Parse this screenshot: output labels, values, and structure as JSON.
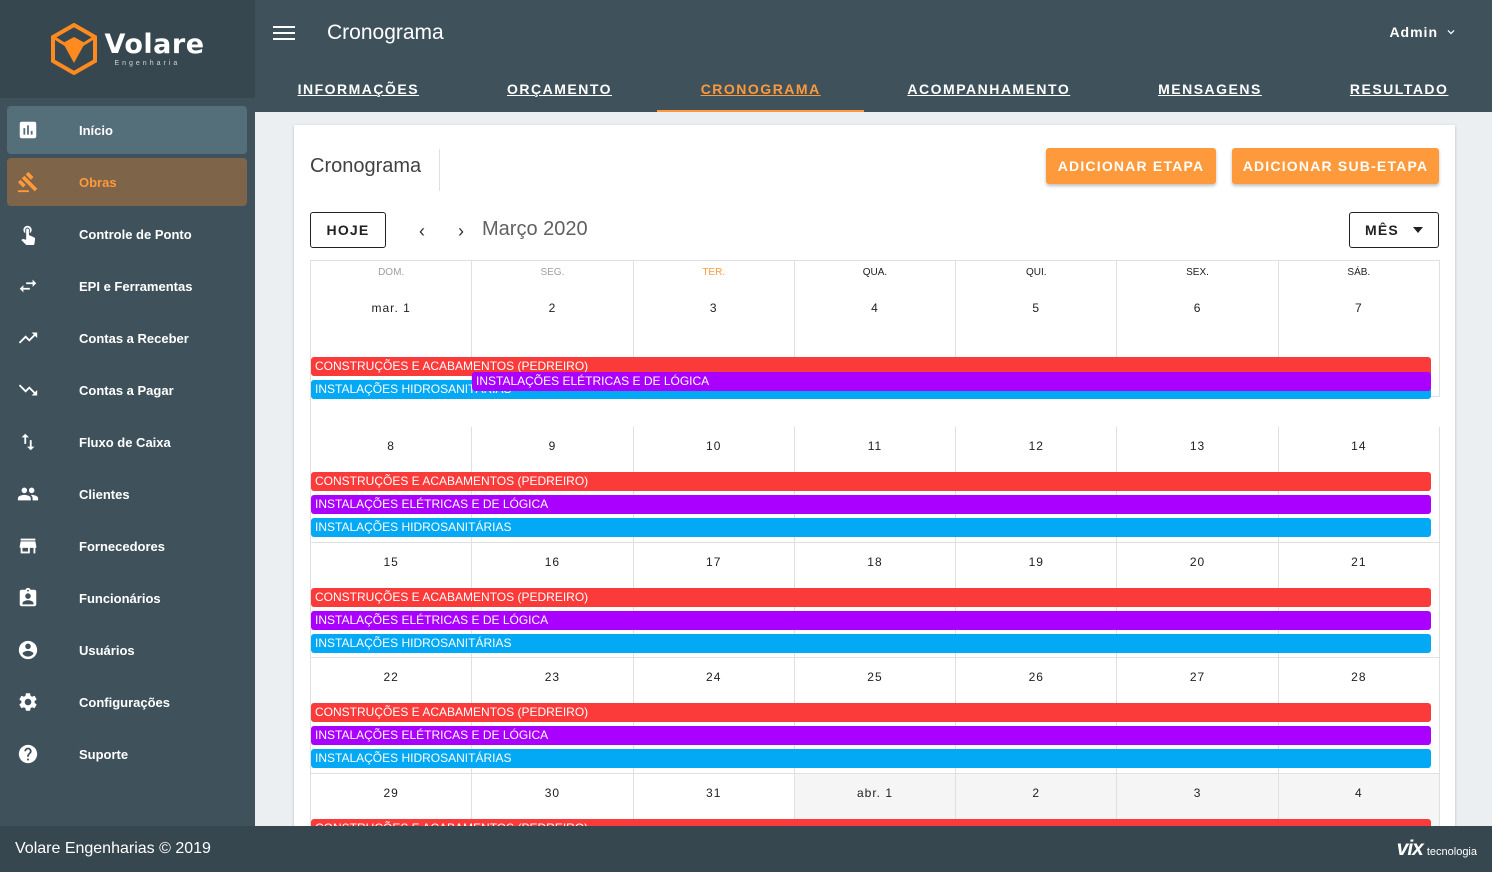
{
  "brand": {
    "name": "Volare",
    "sub": "Engenharia",
    "accent": "#ff9a3c"
  },
  "sidebar": {
    "items": [
      {
        "label": "Início",
        "icon": "chart-icon"
      },
      {
        "label": "Obras",
        "icon": "gavel-icon"
      },
      {
        "label": "Controle de Ponto",
        "icon": "touch-icon"
      },
      {
        "label": "EPI e Ferramentas",
        "icon": "swap-icon"
      },
      {
        "label": "Contas a Receber",
        "icon": "trending-up-icon"
      },
      {
        "label": "Contas a Pagar",
        "icon": "trending-down-icon"
      },
      {
        "label": "Fluxo de Caixa",
        "icon": "import-export-icon"
      },
      {
        "label": "Clientes",
        "icon": "people-icon"
      },
      {
        "label": "Fornecedores",
        "icon": "store-icon"
      },
      {
        "label": "Funcionários",
        "icon": "badge-icon"
      },
      {
        "label": "Usuários",
        "icon": "account-icon"
      },
      {
        "label": "Configurações",
        "icon": "gear-icon"
      },
      {
        "label": "Suporte",
        "icon": "help-icon"
      }
    ]
  },
  "header": {
    "title": "Cronograma",
    "user": "Admin",
    "tabs": [
      {
        "label": "INFORMAÇÕES"
      },
      {
        "label": "ORÇAMENTO"
      },
      {
        "label": "CRONOGRAMA"
      },
      {
        "label": "ACOMPANHAMENTO"
      },
      {
        "label": "MENSAGENS"
      },
      {
        "label": "RESULTADO"
      }
    ]
  },
  "card": {
    "title": "Cronograma",
    "add_stage": "ADICIONAR ETAPA",
    "add_substage": "ADICIONAR SUB-ETAPA"
  },
  "calendar": {
    "today_label": "HOJE",
    "prev_label": "‹",
    "next_label": "›",
    "month_title": "Março 2020",
    "view_label": "MÊS",
    "weekdays": [
      "DOM.",
      "SEG.",
      "TER.",
      "QUA.",
      "QUI.",
      "SEX.",
      "SÁB."
    ],
    "weeks": [
      [
        "mar. 1",
        "2",
        "3",
        "4",
        "5",
        "6",
        "7"
      ],
      [
        "8",
        "9",
        "10",
        "11",
        "12",
        "13",
        "14"
      ],
      [
        "15",
        "16",
        "17",
        "18",
        "19",
        "20",
        "21"
      ],
      [
        "22",
        "23",
        "24",
        "25",
        "26",
        "27",
        "28"
      ],
      [
        "29",
        "30",
        "31",
        "abr. 1",
        "2",
        "3",
        "4"
      ]
    ],
    "events": [
      {
        "label": "CONSTRUÇÕES E ACABAMENTOS (PEDREIRO)",
        "color": "#fb3a3a"
      },
      {
        "label": "INSTALAÇÕES HIDROSANITÁRIAS",
        "color": "#03a9f4"
      },
      {
        "label": "INSTALAÇÕES ELÉTRICAS E DE LÓGICA",
        "color": "#aa00ff"
      }
    ]
  },
  "footer": {
    "copyright": "Volare Engenharias © 2019",
    "vendor_mark": "vix",
    "vendor_word": "tecnologia"
  }
}
